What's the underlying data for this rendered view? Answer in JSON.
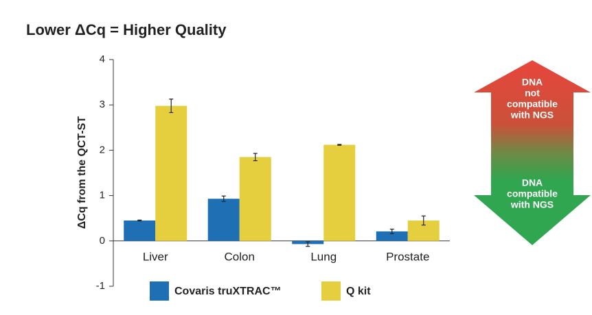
{
  "chart_data": {
    "type": "bar",
    "title": "Lower ΔCq = Higher Quality",
    "y_label": "ΔCq from the QCT-ST",
    "categories": [
      "Liver",
      "Colon",
      "Lung",
      "Prostate"
    ],
    "series": [
      {
        "name": "Covaris truXTRAC™",
        "color": "#1f6fb4",
        "values": [
          0.45,
          0.93,
          -0.07,
          0.21
        ],
        "errors": [
          0.01,
          0.06,
          0.05,
          0.05
        ]
      },
      {
        "name": "Q kit",
        "color": "#e6cf3f",
        "values": [
          2.98,
          1.85,
          2.12,
          0.45
        ],
        "errors": [
          0.15,
          0.08,
          0.01,
          0.1
        ]
      }
    ],
    "ylim": [
      -1,
      4
    ],
    "yticks": [
      -1,
      0,
      1,
      2,
      3,
      4
    ],
    "annotations": {
      "top": [
        "DNA",
        "not",
        "compatible",
        "with NGS"
      ],
      "bottom": [
        "DNA",
        "compatible",
        "with NGS"
      ]
    }
  }
}
